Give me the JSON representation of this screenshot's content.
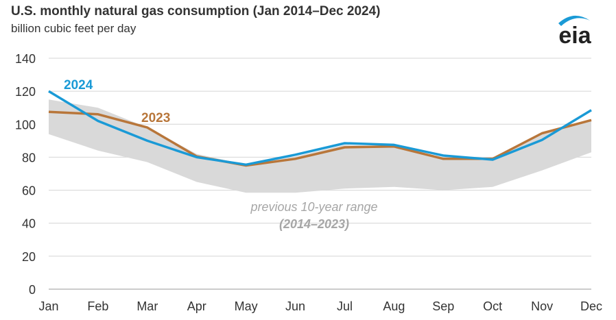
{
  "title": "U.S. monthly natural gas consumption (Jan 2014–Dec 2024)",
  "subtitle": "billion cubic feet per day",
  "logo_text": "eia",
  "colors": {
    "series_2024": "#1a9ad6",
    "series_2023": "#b8763a",
    "range_fill": "#d9d9d9",
    "range_label": "#a6a6a6",
    "axis_text": "#333333",
    "grid": "#d4d4d4",
    "logo_arc": "#1a9ad6",
    "logo_text": "#222222"
  },
  "chart_data": {
    "type": "line",
    "title": "U.S. monthly natural gas consumption (Jan 2014–Dec 2024)",
    "ylabel": "billion cubic feet per day",
    "xlabel": "",
    "categories": [
      "Jan",
      "Feb",
      "Mar",
      "Apr",
      "May",
      "Jun",
      "Jul",
      "Aug",
      "Sep",
      "Oct",
      "Nov",
      "Dec"
    ],
    "ylim": [
      0,
      140
    ],
    "yticks": [
      "0",
      "20",
      "40",
      "60",
      "80",
      "100",
      "120",
      "140"
    ],
    "grid": true,
    "series": [
      {
        "name": "2024",
        "values": [
          120,
          102,
          90,
          80,
          75.5,
          81.5,
          88.5,
          87.5,
          81,
          78.5,
          90.5,
          108.5
        ]
      },
      {
        "name": "2023",
        "values": [
          107.5,
          106,
          98,
          80.5,
          75,
          79,
          86,
          86.5,
          79,
          79,
          94.5,
          102.5
        ]
      }
    ],
    "range": {
      "label_line1": "previous 10-year range",
      "label_line2": "(2014–2023)",
      "max": [
        115,
        110,
        98,
        82,
        75.5,
        80.5,
        87.5,
        86.5,
        80,
        79,
        95,
        103
      ],
      "min": [
        94,
        84,
        77,
        65,
        58.5,
        58.5,
        61,
        62,
        60,
        62,
        72,
        83
      ]
    }
  }
}
